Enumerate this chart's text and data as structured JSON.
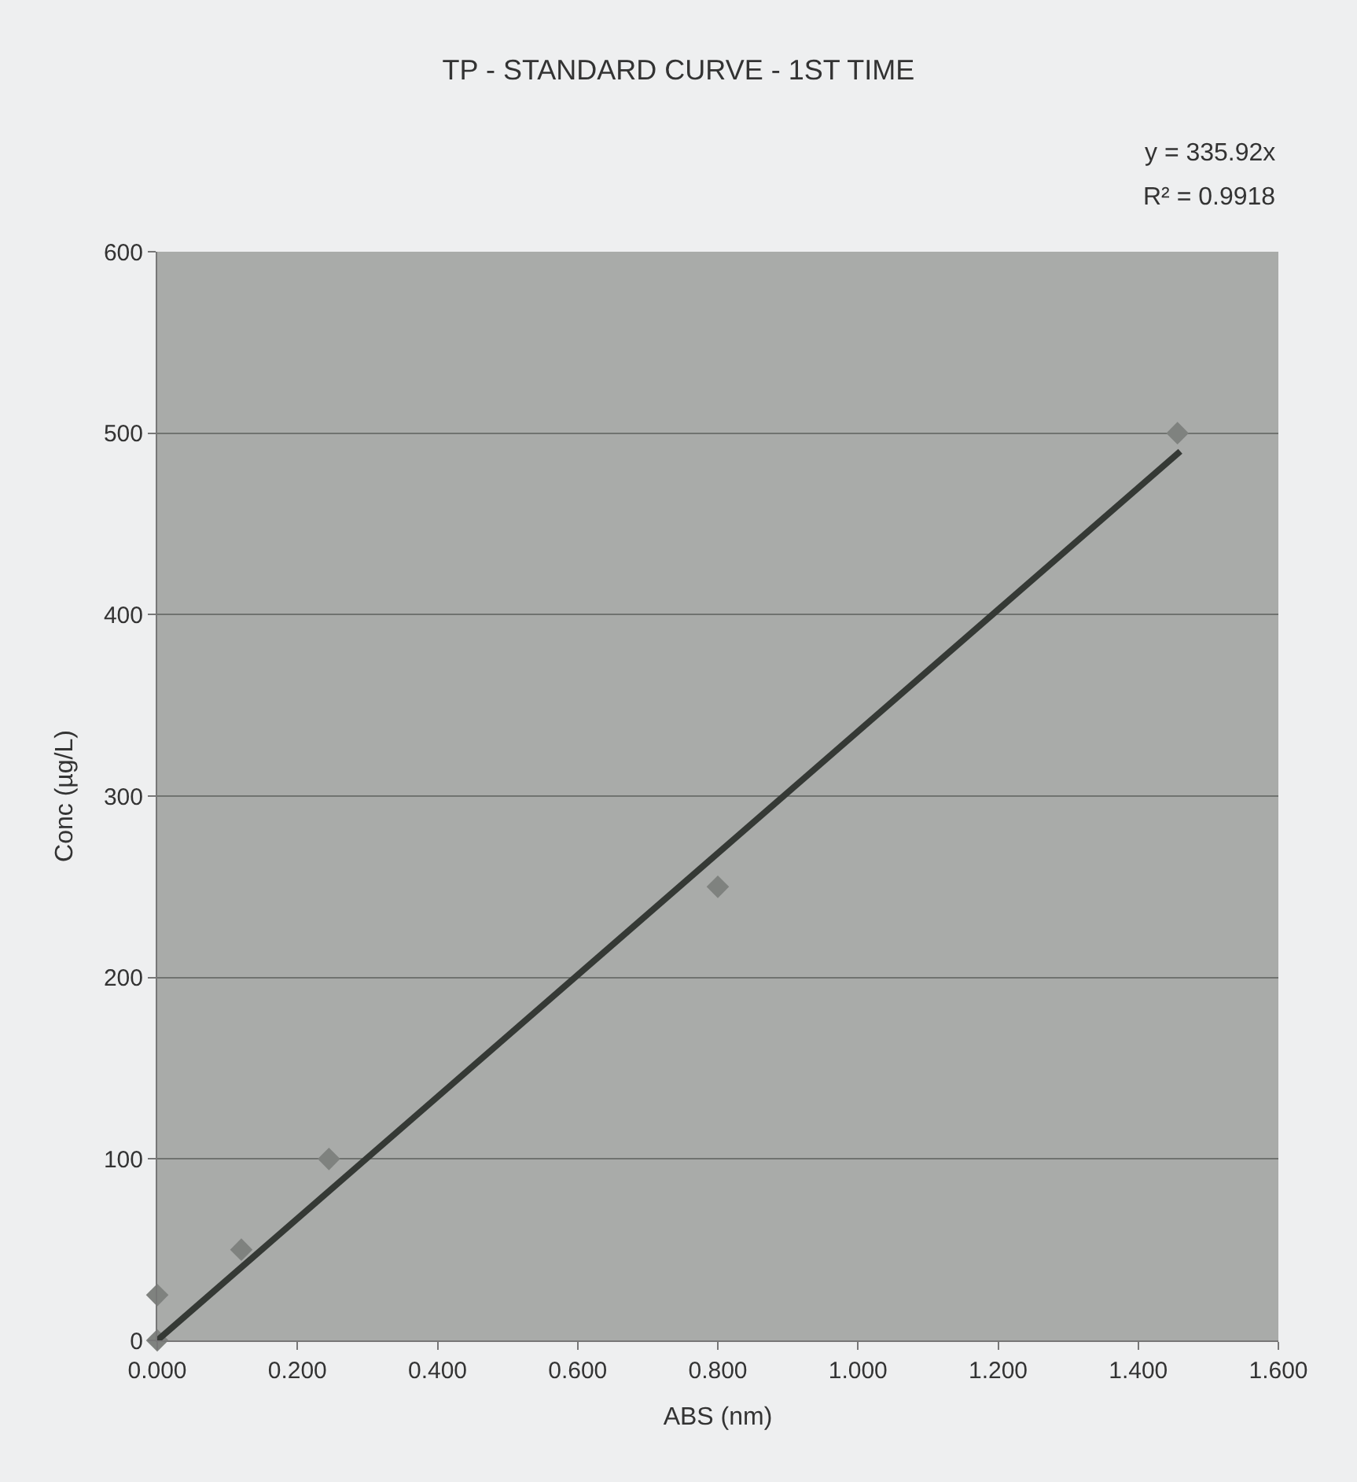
{
  "chart_data": {
    "type": "scatter",
    "title": "TP - STANDARD CURVE - 1ST TIME",
    "xlabel": "ABS (nm)",
    "ylabel": "Conc (µg/L)",
    "annotations": [
      "y = 335.92x",
      "R² = 0.9918"
    ],
    "x": [
      0,
      0,
      0.12,
      0.245,
      0.8,
      1.456
    ],
    "series": [
      {
        "color": "#7f827f",
        "marker": "diamond",
        "values": [
          0,
          25,
          50,
          100,
          250,
          500
        ]
      },
      {
        "type": "line",
        "color": "#353935",
        "marker": "none",
        "line_style": "solid",
        "x": [
          0,
          1.46
        ],
        "values": [
          0,
          490
        ]
      }
    ],
    "xlim": [
      0,
      1.6
    ],
    "ylim": [
      0,
      600
    ],
    "xticks": [
      {
        "value": 0,
        "label": "0.000"
      },
      {
        "value": 0.2,
        "label": "0.200"
      },
      {
        "value": 0.4,
        "label": "0.400"
      },
      {
        "value": 0.6,
        "label": "0.600"
      },
      {
        "value": 0.8,
        "label": "0.800"
      },
      {
        "value": 1.0,
        "label": "1.000"
      },
      {
        "value": 1.2,
        "label": "1.200"
      },
      {
        "value": 1.4,
        "label": "1.400"
      },
      {
        "value": 1.6,
        "label": "1.600"
      }
    ],
    "yticks": [
      0,
      100,
      200,
      300,
      400,
      500,
      600
    ],
    "grid": "y"
  }
}
